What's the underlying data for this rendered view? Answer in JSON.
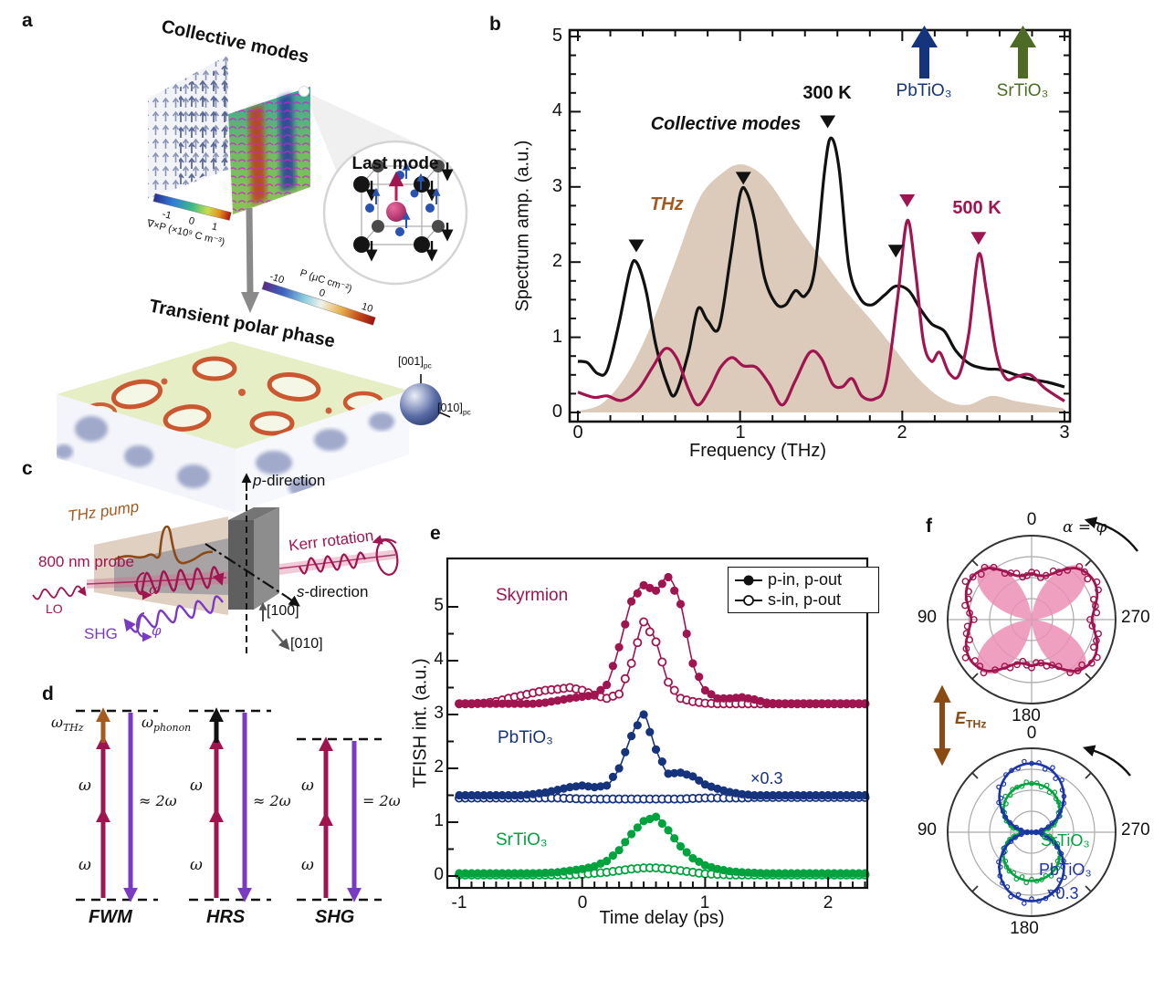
{
  "panel_labels": {
    "a": "a",
    "b": "b",
    "c": "c",
    "d": "d",
    "e": "e",
    "f": "f"
  },
  "colors": {
    "crimson": "#a01450",
    "navy": "#16337d",
    "bright_blue": "#1b34a8",
    "olive_green": "#4d6b24",
    "bright_green": "#00a33e",
    "purple": "#7a3bc4",
    "brown": "#a35a1e",
    "dark_brown": "#8a4a12",
    "tan_fill": "#d8c4b2",
    "black": "#111111"
  },
  "panel_a": {
    "title": "Collective modes",
    "colorbar_curl": {
      "label": "∇×P (×10⁹ C m⁻³)",
      "ticks": [
        "-1",
        "0",
        "1"
      ]
    },
    "inset_title": "Last mode",
    "slab_title": "Transient polar phase",
    "colorbar_p": {
      "label": "P (μC cm⁻²)",
      "ticks": [
        "-10",
        "0",
        "10"
      ]
    },
    "axis_001": {
      "main": "[001]",
      "sub": "pc"
    },
    "axis_010": {
      "main": "[010]",
      "sub": "pc"
    }
  },
  "panel_b": {
    "ylabel": "Spectrum amp. (a.u.)",
    "xlabel": "Frequency (THz)",
    "xticks": [
      "0",
      "1",
      "2",
      "3"
    ],
    "yticks": [
      "0",
      "1",
      "2",
      "3",
      "4",
      "5"
    ],
    "label_thz": "THz",
    "label_collective": "Collective modes",
    "label_300k": "300 K",
    "label_500k": "500 K",
    "label_pbtio3": "PbTiO₃",
    "label_srtio3": "SrTiO₃"
  },
  "panel_c": {
    "p_direction_i": "p",
    "p_direction_rest": "-direction",
    "s_direction_i": "s",
    "s_direction_rest": "-direction",
    "thz_pump": "THz pump",
    "probe": "800 nm probe",
    "lo": "LO",
    "shg": "SHG",
    "alpha": "α",
    "phi": "φ",
    "kerr": "Kerr rotation",
    "miller_100": "[100]",
    "miller_010": "[010]"
  },
  "panel_d": {
    "omega": "ω",
    "omega_thz": {
      "main": "ω",
      "sub": "THz"
    },
    "omega_phonon": {
      "main": "ω",
      "sub": "phonon"
    },
    "fwm_2w": "≈ 2ω",
    "hrs_2w": "≈ 2ω",
    "shg_2w": "= 2ω",
    "fwm": "FWM",
    "hrs": "HRS",
    "shg": "SHG"
  },
  "panel_e": {
    "ylabel": "TFISH int. (a.u.)",
    "xlabel": "Time delay (ps)",
    "xticks": [
      "-1",
      "0",
      "1",
      "2"
    ],
    "yticks": [
      "0",
      "1",
      "2",
      "3",
      "4",
      "5"
    ],
    "label_skyrmion": "Skyrmion",
    "label_pbtio3": "PbTiO₃",
    "label_srtio3": "SrTiO₃",
    "label_scale": "×0.3",
    "legend": [
      {
        "label": "p-in, p-out"
      },
      {
        "label": "s-in, p-out"
      }
    ]
  },
  "panel_f": {
    "top": {
      "t0": "0",
      "t90": "90",
      "t270": "270",
      "t180": "180",
      "annotation": "α = φ"
    },
    "e_thz": {
      "main": "E",
      "sub": "THz"
    },
    "bottom": {
      "t0": "0",
      "t90": "90",
      "t270": "270",
      "t180": "180",
      "label_srtio3": "SrTiO₃",
      "label_pbtio3": "PbTiO₃",
      "label_scale": "×0.3"
    }
  },
  "chart_data": [
    {
      "panel": "b",
      "type": "line",
      "xlabel": "Frequency (THz)",
      "ylabel": "Spectrum amp. (a.u.)",
      "xlim": [
        0,
        3
      ],
      "ylim": [
        0,
        5
      ],
      "series": [
        {
          "name": "THz pump spectrum",
          "role": "area",
          "color": "#d8c4b2",
          "points": [
            [
              0,
              0.02
            ],
            [
              0.15,
              0.12
            ],
            [
              0.3,
              0.5
            ],
            [
              0.45,
              1.15
            ],
            [
              0.6,
              2.0
            ],
            [
              0.75,
              2.85
            ],
            [
              0.9,
              3.2
            ],
            [
              1.0,
              3.3
            ],
            [
              1.1,
              3.22
            ],
            [
              1.2,
              3.0
            ],
            [
              1.35,
              2.5
            ],
            [
              1.5,
              2.05
            ],
            [
              1.65,
              1.62
            ],
            [
              1.8,
              1.25
            ],
            [
              1.95,
              0.85
            ],
            [
              2.1,
              0.45
            ],
            [
              2.25,
              0.18
            ],
            [
              2.4,
              0.1
            ],
            [
              2.55,
              0.22
            ],
            [
              2.7,
              0.15
            ],
            [
              2.85,
              0.1
            ],
            [
              3,
              0.05
            ]
          ]
        },
        {
          "name": "300 K",
          "role": "line",
          "color": "#111111",
          "points": [
            [
              0,
              0.68
            ],
            [
              0.06,
              0.66
            ],
            [
              0.12,
              0.52
            ],
            [
              0.18,
              0.56
            ],
            [
              0.25,
              1.15
            ],
            [
              0.32,
              1.88
            ],
            [
              0.36,
              2.0
            ],
            [
              0.42,
              1.62
            ],
            [
              0.48,
              0.9
            ],
            [
              0.55,
              0.38
            ],
            [
              0.6,
              0.24
            ],
            [
              0.68,
              0.78
            ],
            [
              0.74,
              1.38
            ],
            [
              0.8,
              1.22
            ],
            [
              0.87,
              1.13
            ],
            [
              0.94,
              2.05
            ],
            [
              1.0,
              2.9
            ],
            [
              1.04,
              2.93
            ],
            [
              1.09,
              2.55
            ],
            [
              1.15,
              1.8
            ],
            [
              1.22,
              1.45
            ],
            [
              1.28,
              1.43
            ],
            [
              1.34,
              1.62
            ],
            [
              1.4,
              1.55
            ],
            [
              1.46,
              1.9
            ],
            [
              1.52,
              3.2
            ],
            [
              1.56,
              3.65
            ],
            [
              1.61,
              3.25
            ],
            [
              1.67,
              1.95
            ],
            [
              1.74,
              1.52
            ],
            [
              1.81,
              1.43
            ],
            [
              1.89,
              1.56
            ],
            [
              1.96,
              1.68
            ],
            [
              2.04,
              1.62
            ],
            [
              2.11,
              1.38
            ],
            [
              2.18,
              1.18
            ],
            [
              2.26,
              1.08
            ],
            [
              2.33,
              0.82
            ],
            [
              2.42,
              0.64
            ],
            [
              2.52,
              0.58
            ],
            [
              2.6,
              0.57
            ],
            [
              2.7,
              0.5
            ],
            [
              2.8,
              0.44
            ],
            [
              2.9,
              0.4
            ],
            [
              3,
              0.34
            ]
          ]
        },
        {
          "name": "500 K",
          "role": "line",
          "color": "#a01450",
          "points": [
            [
              0,
              0.27
            ],
            [
              0.1,
              0.2
            ],
            [
              0.18,
              0.22
            ],
            [
              0.27,
              0.16
            ],
            [
              0.37,
              0.3
            ],
            [
              0.46,
              0.6
            ],
            [
              0.54,
              0.85
            ],
            [
              0.61,
              0.72
            ],
            [
              0.68,
              0.32
            ],
            [
              0.74,
              0.1
            ],
            [
              0.81,
              0.3
            ],
            [
              0.88,
              0.6
            ],
            [
              0.95,
              0.73
            ],
            [
              1.02,
              0.62
            ],
            [
              1.1,
              0.6
            ],
            [
              1.18,
              0.38
            ],
            [
              1.26,
              0.1
            ],
            [
              1.34,
              0.42
            ],
            [
              1.43,
              0.8
            ],
            [
              1.5,
              0.72
            ],
            [
              1.57,
              0.38
            ],
            [
              1.63,
              0.34
            ],
            [
              1.69,
              0.45
            ],
            [
              1.75,
              0.22
            ],
            [
              1.83,
              0.18
            ],
            [
              1.9,
              0.4
            ],
            [
              1.97,
              1.5
            ],
            [
              2.03,
              2.55
            ],
            [
              2.08,
              1.9
            ],
            [
              2.13,
              0.95
            ],
            [
              2.18,
              0.68
            ],
            [
              2.23,
              0.8
            ],
            [
              2.29,
              0.52
            ],
            [
              2.35,
              0.5
            ],
            [
              2.41,
              1.05
            ],
            [
              2.47,
              2.1
            ],
            [
              2.52,
              1.6
            ],
            [
              2.58,
              0.78
            ],
            [
              2.64,
              0.45
            ],
            [
              2.71,
              0.48
            ],
            [
              2.79,
              0.5
            ],
            [
              2.88,
              0.32
            ],
            [
              3,
              0.15
            ]
          ]
        }
      ],
      "peak_markers": [
        {
          "color": "#111111",
          "xy": [
            [
              0.36,
              2.3
            ],
            [
              1.02,
              3.2
            ],
            [
              1.54,
              3.95
            ],
            [
              1.96,
              2.23
            ]
          ]
        },
        {
          "color": "#a01450",
          "xy": [
            [
              2.03,
              2.9
            ],
            [
              2.47,
              2.4
            ]
          ]
        }
      ],
      "resonance_arrows": [
        {
          "x": 2.13,
          "color": "#16337d",
          "label": "PbTiO₃"
        },
        {
          "x": 2.74,
          "color": "#4d6b24",
          "label": "SrTiO₃"
        }
      ]
    },
    {
      "panel": "e",
      "type": "line+scatter",
      "xlabel": "Time delay (ps)",
      "ylabel": "TFISH int. (a.u.)",
      "xlim": [
        -1,
        2.3
      ],
      "ylim": [
        -0.2,
        6
      ],
      "x_start": -1.0,
      "x_step": 0.1,
      "series": [
        {
          "name": "Skyrmion s-in, p-out",
          "color": "#a01450",
          "marker": "open",
          "values": [
            3.2,
            3.2,
            3.21,
            3.24,
            3.3,
            3.35,
            3.4,
            3.45,
            3.47,
            3.5,
            3.45,
            3.36,
            3.3,
            3.38,
            3.95,
            4.72,
            4.35,
            3.6,
            3.3,
            3.24,
            3.21,
            3.2,
            3.2,
            3.2,
            3.2,
            3.2,
            3.2,
            3.2,
            3.2,
            3.2,
            3.2,
            3.2,
            3.2,
            3.2
          ]
        },
        {
          "name": "Skyrmion p-in, p-out",
          "color": "#a01450",
          "marker": "filled",
          "values": [
            3.2,
            3.2,
            3.2,
            3.2,
            3.2,
            3.2,
            3.2,
            3.22,
            3.26,
            3.3,
            3.33,
            3.36,
            3.55,
            4.25,
            5.1,
            5.4,
            5.3,
            5.55,
            5.05,
            3.95,
            3.45,
            3.3,
            3.3,
            3.32,
            3.28,
            3.22,
            3.2,
            3.2,
            3.2,
            3.2,
            3.2,
            3.2,
            3.2,
            3.2
          ]
        },
        {
          "name": "PbTiO₃ s-in, p-out ×0.3",
          "color": "#16337d",
          "marker": "open",
          "values": [
            1.45,
            1.45,
            1.45,
            1.45,
            1.45,
            1.45,
            1.45,
            1.45,
            1.45,
            1.44,
            1.43,
            1.43,
            1.43,
            1.43,
            1.43,
            1.43,
            1.43,
            1.43,
            1.43,
            1.44,
            1.45,
            1.45,
            1.45,
            1.45,
            1.46,
            1.46,
            1.46,
            1.46,
            1.46,
            1.46,
            1.46,
            1.46,
            1.46,
            1.46
          ]
        },
        {
          "name": "PbTiO₃ p-in, p-out ×0.3",
          "color": "#16337d",
          "marker": "filled",
          "values": [
            1.5,
            1.5,
            1.5,
            1.5,
            1.5,
            1.5,
            1.52,
            1.55,
            1.6,
            1.65,
            1.68,
            1.65,
            1.68,
            2.0,
            2.6,
            3.0,
            2.35,
            1.9,
            1.92,
            1.85,
            1.7,
            1.62,
            1.56,
            1.52,
            1.5,
            1.5,
            1.5,
            1.5,
            1.5,
            1.5,
            1.5,
            1.5,
            1.5,
            1.5
          ]
        },
        {
          "name": "SrTiO₃ s-in, p-out",
          "color": "#00a33e",
          "marker": "open",
          "values": [
            0.02,
            0.02,
            0.02,
            0.02,
            0.02,
            0.02,
            0.02,
            0.02,
            0.02,
            0.02,
            0.03,
            0.05,
            0.07,
            0.1,
            0.13,
            0.15,
            0.15,
            0.13,
            0.1,
            0.07,
            0.04,
            0.03,
            0.02,
            0.02,
            0.02,
            0.02,
            0.02,
            0.02,
            0.02,
            0.02,
            0.02,
            0.02,
            0.02,
            0.02
          ]
        },
        {
          "name": "SrTiO₃ p-in, p-out",
          "color": "#00a33e",
          "marker": "filled",
          "values": [
            0.05,
            0.05,
            0.05,
            0.05,
            0.05,
            0.05,
            0.05,
            0.06,
            0.07,
            0.1,
            0.13,
            0.18,
            0.28,
            0.48,
            0.78,
            1.02,
            1.1,
            0.85,
            0.55,
            0.33,
            0.2,
            0.13,
            0.09,
            0.07,
            0.06,
            0.05,
            0.05,
            0.05,
            0.05,
            0.05,
            0.05,
            0.05,
            0.05,
            0.05
          ]
        }
      ]
    },
    {
      "panel": "f-top",
      "type": "polar",
      "angle_labels": [
        "0",
        "90",
        "180",
        "270"
      ],
      "color": "#a01450",
      "fill_color": "#ec8fb5",
      "marker": "open",
      "outline_r_step_deg": 10,
      "outline_r": [
        0.55,
        0.53,
        0.56,
        0.67,
        0.8,
        0.86,
        0.87,
        0.83,
        0.76,
        0.72,
        0.76,
        0.83,
        0.87,
        0.86,
        0.8,
        0.67,
        0.56,
        0.53,
        0.55,
        0.53,
        0.56,
        0.67,
        0.8,
        0.86,
        0.87,
        0.83,
        0.76,
        0.72,
        0.76,
        0.83,
        0.87,
        0.86,
        0.8,
        0.67,
        0.56,
        0.53
      ],
      "petals": {
        "rmax": 0.86,
        "exponent": 1.5
      }
    },
    {
      "panel": "f-bottom",
      "type": "polar",
      "angle_labels": [
        "0",
        "90",
        "180",
        "270"
      ],
      "series": [
        {
          "name": "SrTiO₃",
          "color": "#00a33e",
          "rmax": 0.58,
          "exponent": 0.65
        },
        {
          "name": "PbTiO₃ ×0.3",
          "color": "#1b34a8",
          "rmax": 0.82,
          "exponent": 1.2
        }
      ]
    }
  ]
}
